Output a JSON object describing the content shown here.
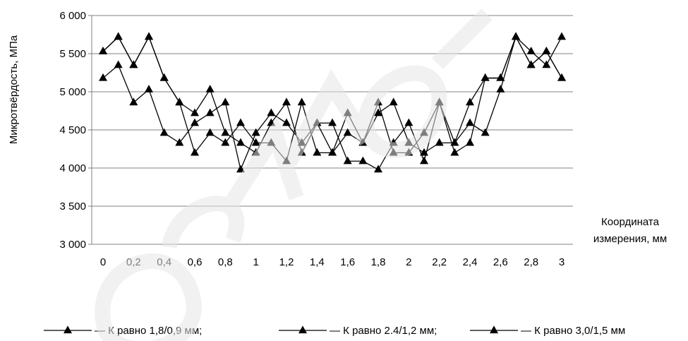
{
  "chart_data": {
    "type": "line",
    "ylabel": "Микротвёрдость, МПа",
    "xlabel_line1": "Координата",
    "xlabel_line2": "измерения, мм",
    "ylim": [
      3000,
      6000
    ],
    "y_ticks": [
      3000,
      3500,
      4000,
      4500,
      5000,
      5500,
      6000
    ],
    "y_tick_labels": [
      "3 000",
      "3 500",
      "4 000",
      "4 500",
      "5 000",
      "5 500",
      "6 000"
    ],
    "x_tick_labels": [
      "0",
      "0,2",
      "0,4",
      "0,6",
      "0,8",
      "1",
      "1,2",
      "1,4",
      "1,6",
      "1,8",
      "2",
      "2,2",
      "2,4",
      "2,6",
      "2,8",
      "3"
    ],
    "x": [
      0,
      0.1,
      0.2,
      0.3,
      0.4,
      0.5,
      0.6,
      0.7,
      0.8,
      0.9,
      1.0,
      1.1,
      1.2,
      1.3,
      1.4,
      1.5,
      1.6,
      1.7,
      1.8,
      1.9,
      2.0,
      2.1,
      2.2,
      2.3,
      2.4,
      2.5,
      2.6,
      2.7,
      2.8,
      2.9,
      3.0
    ],
    "grid": "horizontal",
    "legend_position": "bottom",
    "series": [
      {
        "name": "К равно  1,8/0,9 мм;",
        "values": [
          5530,
          5720,
          5350,
          5720,
          5180,
          4860,
          4720,
          5030,
          4460,
          4330,
          4200,
          4590,
          4860,
          4200,
          4590,
          4590,
          4090,
          4090,
          3980,
          4330,
          4590,
          4090,
          4860,
          4200,
          4330,
          5180,
          5180,
          5720,
          5350,
          5530,
          5180
        ]
      },
      {
        "name": "К равно  2.4/1,2 мм;",
        "values": [
          5180,
          5350,
          4860,
          5030,
          4460,
          4330,
          4590,
          4720,
          4860,
          3980,
          4460,
          4720,
          4590,
          4330,
          4590,
          4200,
          4720,
          4330,
          4720,
          4860,
          4330,
          4200,
          4330,
          4330,
          4590,
          4460,
          5030,
          5720,
          5530,
          5350,
          5720
        ]
      },
      {
        "name": "К равно  3,0/1,5 мм",
        "values": [
          5530,
          5720,
          5350,
          5720,
          5180,
          4860,
          4200,
          4460,
          4330,
          4590,
          4330,
          4330,
          4090,
          4860,
          4200,
          4200,
          4460,
          4330,
          4860,
          4200,
          4200,
          4460,
          4860,
          4330,
          4860,
          5180,
          5180,
          5720,
          5350,
          5530,
          5180
        ]
      }
    ],
    "colors": {
      "line": "#000000",
      "grid": "#808080",
      "watermark": "#e6e6e6"
    }
  }
}
